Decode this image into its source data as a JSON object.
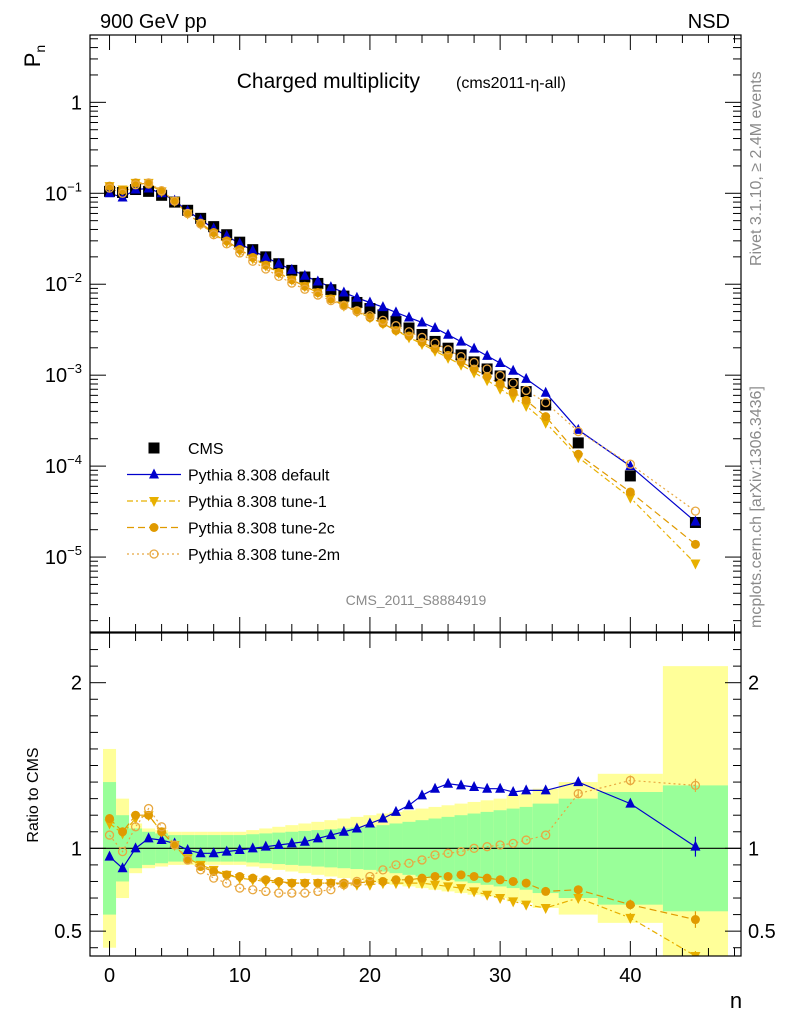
{
  "header": {
    "left": "900 GeV pp",
    "right": "NSD"
  },
  "side_text": {
    "rivet": "Rivet 3.1.10, ≥ 2.4M events",
    "mcplots": "mcplots.cern.ch [arXiv:1306.3436]"
  },
  "chart_data": [
    {
      "type": "scatter",
      "title": "Charged multiplicity",
      "subtitle": "(cms2011-η-all)",
      "ylabel": "P",
      "ylabel_sub": "n",
      "yscale": "log",
      "xlim": [
        -1.5,
        48.5
      ],
      "ylim": [
        1.5e-06,
        5.5
      ],
      "yticks": [
        {
          "v": 1,
          "label": "1"
        },
        {
          "v": 0.1,
          "label": "10",
          "exp": "−1"
        },
        {
          "v": 0.01,
          "label": "10",
          "exp": "−2"
        },
        {
          "v": 0.001,
          "label": "10",
          "exp": "−3"
        },
        {
          "v": 0.0001,
          "label": "10",
          "exp": "−4"
        },
        {
          "v": 1e-05,
          "label": "10",
          "exp": "−5"
        }
      ],
      "watermark": "CMS_2011_S8884919",
      "legend_placement": "lower-left",
      "x": [
        0,
        1,
        2,
        3,
        4,
        5,
        6,
        7,
        8,
        9,
        10,
        11,
        12,
        13,
        14,
        15,
        16,
        17,
        18,
        19,
        20,
        21,
        22,
        23,
        24,
        25,
        26,
        27,
        28,
        29,
        30,
        31,
        32,
        33.5,
        36,
        40,
        45
      ],
      "series": [
        {
          "name": "CMS",
          "color": "#000000",
          "marker": "square",
          "values": [
            0.105,
            0.102,
            0.11,
            0.105,
            0.095,
            0.08,
            0.065,
            0.053,
            0.043,
            0.035,
            0.029,
            0.024,
            0.02,
            0.0168,
            0.0142,
            0.012,
            0.0102,
            0.0087,
            0.0074,
            0.0063,
            0.0054,
            0.0046,
            0.0039,
            0.0033,
            0.0028,
            0.00235,
            0.00198,
            0.00167,
            0.0014,
            0.00117,
            0.00098,
            0.00081,
            0.00066,
            0.00047,
            0.00018,
            7.8e-05,
            2.4e-05
          ]
        },
        {
          "name": "Pythia 8.308 default",
          "color": "#0000cc",
          "marker": "triangle-up",
          "line": "solid",
          "values": [
            0.1,
            0.09,
            0.11,
            0.113,
            0.1,
            0.083,
            0.064,
            0.051,
            0.041,
            0.034,
            0.028,
            0.0235,
            0.0198,
            0.0168,
            0.0144,
            0.0124,
            0.0107,
            0.0093,
            0.0081,
            0.0071,
            0.0063,
            0.0056,
            0.0049,
            0.0043,
            0.0038,
            0.0033,
            0.00278,
            0.00234,
            0.00196,
            0.00163,
            0.00136,
            0.00112,
            0.00091,
            0.00064,
            0.00025,
            0.0001,
            2.45e-05
          ]
        },
        {
          "name": "Pythia 8.308 tune-1",
          "color": "#e8b000",
          "marker": "triangle-down",
          "line": "dashdot",
          "values": [
            0.12,
            0.11,
            0.13,
            0.13,
            0.105,
            0.082,
            0.06,
            0.046,
            0.036,
            0.029,
            0.0233,
            0.0192,
            0.016,
            0.0133,
            0.0112,
            0.0095,
            0.0081,
            0.0069,
            0.0058,
            0.005,
            0.0043,
            0.0037,
            0.0031,
            0.0026,
            0.0022,
            0.00185,
            0.00155,
            0.0013,
            0.00107,
            0.00088,
            0.00071,
            0.00057,
            0.00046,
            0.0003,
            0.000125,
            4.5e-05,
            8.5e-06
          ]
        },
        {
          "name": "Pythia 8.308 tune-2c",
          "color": "#e09a00",
          "marker": "circle",
          "line": "dashed",
          "values": [
            0.12,
            0.108,
            0.13,
            0.126,
            0.105,
            0.082,
            0.06,
            0.047,
            0.037,
            0.03,
            0.0241,
            0.0197,
            0.0162,
            0.0134,
            0.0112,
            0.0095,
            0.0081,
            0.0069,
            0.0059,
            0.005,
            0.0043,
            0.0037,
            0.0031,
            0.0027,
            0.0023,
            0.00195,
            0.00165,
            0.0014,
            0.00117,
            0.00097,
            0.0008,
            0.00065,
            0.00053,
            0.00035,
            0.000135,
            5.2e-05,
            1.38e-05
          ]
        },
        {
          "name": "Pythia 8.308 tune-2m",
          "color": "#e8a840",
          "marker": "circle-open",
          "line": "dotted",
          "values": [
            0.114,
            0.1,
            0.124,
            0.13,
            0.107,
            0.082,
            0.06,
            0.046,
            0.035,
            0.0278,
            0.0221,
            0.0179,
            0.0147,
            0.0122,
            0.0103,
            0.0088,
            0.0076,
            0.0066,
            0.0058,
            0.0051,
            0.0045,
            0.004,
            0.0035,
            0.003,
            0.0026,
            0.00225,
            0.0019,
            0.0016,
            0.00138,
            0.00117,
            0.00099,
            0.00082,
            0.00068,
            0.0005,
            0.00024,
            0.000105,
            3.2e-05
          ]
        }
      ]
    },
    {
      "type": "scatter",
      "ylabel": "Ratio to CMS",
      "xlabel": "n",
      "xlim": [
        -1.5,
        48.5
      ],
      "ylim": [
        0.35,
        2.3
      ],
      "xticks": [
        0,
        10,
        20,
        30,
        40
      ],
      "yticks": [
        {
          "v": 0.5,
          "label": "0.5"
        },
        {
          "v": 1,
          "label": "1"
        },
        {
          "v": 2,
          "label": "2"
        }
      ],
      "x": [
        0,
        1,
        2,
        3,
        4,
        5,
        6,
        7,
        8,
        9,
        10,
        11,
        12,
        13,
        14,
        15,
        16,
        17,
        18,
        19,
        20,
        21,
        22,
        23,
        24,
        25,
        26,
        27,
        28,
        29,
        30,
        31,
        32,
        33.5,
        36,
        40,
        45
      ],
      "bands": {
        "x_edges": [
          -0.5,
          0.5,
          1.5,
          2.5,
          3.5,
          4.5,
          5.5,
          6.5,
          7.5,
          8.5,
          9.5,
          10.5,
          11.5,
          12.5,
          13.5,
          14.5,
          15.5,
          16.5,
          17.5,
          18.5,
          19.5,
          20.5,
          21.5,
          22.5,
          23.5,
          24.5,
          25.5,
          26.5,
          27.5,
          28.5,
          29.5,
          30.5,
          31.5,
          32.5,
          34.5,
          37.5,
          42.5,
          47.5
        ],
        "inner": [
          0.4,
          0.2,
          0.12,
          0.1,
          0.09,
          0.08,
          0.08,
          0.08,
          0.08,
          0.08,
          0.08,
          0.085,
          0.09,
          0.095,
          0.1,
          0.105,
          0.11,
          0.115,
          0.12,
          0.125,
          0.13,
          0.14,
          0.15,
          0.16,
          0.17,
          0.18,
          0.19,
          0.2,
          0.21,
          0.22,
          0.23,
          0.24,
          0.25,
          0.27,
          0.3,
          0.34,
          0.38
        ],
        "outer": [
          0.6,
          0.3,
          0.15,
          0.12,
          0.11,
          0.1,
          0.1,
          0.1,
          0.1,
          0.1,
          0.1,
          0.11,
          0.12,
          0.13,
          0.14,
          0.15,
          0.16,
          0.17,
          0.18,
          0.19,
          0.2,
          0.21,
          0.22,
          0.23,
          0.24,
          0.25,
          0.26,
          0.27,
          0.28,
          0.29,
          0.3,
          0.32,
          0.33,
          0.36,
          0.4,
          0.45,
          1.1
        ],
        "inner_color": "#99ff99",
        "outer_color": "#ffff99"
      },
      "series": [
        {
          "name": "Pythia 8.308 default",
          "color": "#0000cc",
          "marker": "triangle-up",
          "line": "solid",
          "values": [
            0.95,
            0.88,
            1.0,
            1.06,
            1.05,
            1.03,
            0.99,
            0.97,
            0.97,
            0.98,
            0.99,
            1.0,
            1.01,
            1.02,
            1.03,
            1.04,
            1.06,
            1.08,
            1.1,
            1.12,
            1.15,
            1.18,
            1.22,
            1.26,
            1.32,
            1.36,
            1.39,
            1.38,
            1.37,
            1.36,
            1.36,
            1.34,
            1.35,
            1.35,
            1.4,
            1.27,
            1.01
          ],
          "err": [
            0,
            0,
            0,
            0,
            0,
            0,
            0,
            0,
            0,
            0,
            0,
            0,
            0,
            0,
            0,
            0,
            0,
            0,
            0,
            0,
            0,
            0,
            0,
            0,
            0,
            0,
            0,
            0,
            0,
            0,
            0,
            0,
            0,
            0,
            0,
            0,
            0.06
          ]
        },
        {
          "name": "Pythia 8.308 tune-1",
          "color": "#e8b000",
          "marker": "triangle-down",
          "line": "dashdot",
          "values": [
            1.15,
            1.09,
            1.18,
            1.2,
            1.1,
            1.02,
            0.94,
            0.9,
            0.87,
            0.84,
            0.82,
            0.81,
            0.8,
            0.79,
            0.79,
            0.79,
            0.79,
            0.79,
            0.78,
            0.78,
            0.78,
            0.79,
            0.79,
            0.79,
            0.79,
            0.78,
            0.77,
            0.76,
            0.74,
            0.72,
            0.7,
            0.68,
            0.66,
            0.64,
            0.7,
            0.58,
            0.35
          ],
          "err": [
            0,
            0,
            0,
            0,
            0,
            0,
            0,
            0,
            0,
            0,
            0,
            0,
            0,
            0,
            0,
            0,
            0,
            0,
            0,
            0,
            0,
            0,
            0,
            0,
            0,
            0,
            0,
            0,
            0,
            0,
            0,
            0,
            0,
            0.02,
            0.03,
            0.03,
            0.03
          ]
        },
        {
          "name": "Pythia 8.308 tune-2c",
          "color": "#e09a00",
          "marker": "circle",
          "line": "dashed",
          "values": [
            1.18,
            1.1,
            1.2,
            1.2,
            1.1,
            1.02,
            0.93,
            0.89,
            0.86,
            0.84,
            0.83,
            0.82,
            0.81,
            0.8,
            0.79,
            0.79,
            0.79,
            0.79,
            0.79,
            0.79,
            0.8,
            0.8,
            0.81,
            0.81,
            0.82,
            0.83,
            0.83,
            0.84,
            0.83,
            0.82,
            0.81,
            0.8,
            0.79,
            0.74,
            0.75,
            0.66,
            0.57
          ],
          "err": [
            0,
            0,
            0,
            0,
            0,
            0,
            0,
            0,
            0,
            0,
            0,
            0,
            0,
            0,
            0,
            0,
            0,
            0,
            0,
            0,
            0,
            0,
            0,
            0,
            0,
            0,
            0,
            0,
            0,
            0,
            0,
            0,
            0,
            0.02,
            0.02,
            0.03,
            0.05
          ]
        },
        {
          "name": "Pythia 8.308 tune-2m",
          "color": "#e8a840",
          "marker": "circle-open",
          "line": "dotted",
          "values": [
            1.08,
            0.98,
            1.13,
            1.24,
            1.13,
            1.02,
            0.93,
            0.87,
            0.82,
            0.79,
            0.76,
            0.75,
            0.74,
            0.73,
            0.73,
            0.73,
            0.74,
            0.75,
            0.78,
            0.8,
            0.83,
            0.87,
            0.9,
            0.91,
            0.93,
            0.96,
            0.97,
            0.98,
            1.0,
            1.01,
            1.02,
            1.03,
            1.05,
            1.08,
            1.33,
            1.41,
            1.38
          ],
          "err": [
            0,
            0,
            0,
            0,
            0,
            0,
            0,
            0,
            0,
            0,
            0,
            0,
            0,
            0,
            0,
            0,
            0,
            0,
            0,
            0,
            0,
            0,
            0,
            0,
            0,
            0,
            0,
            0,
            0,
            0,
            0,
            0,
            0,
            0,
            0.02,
            0.03,
            0.04
          ]
        }
      ]
    }
  ]
}
